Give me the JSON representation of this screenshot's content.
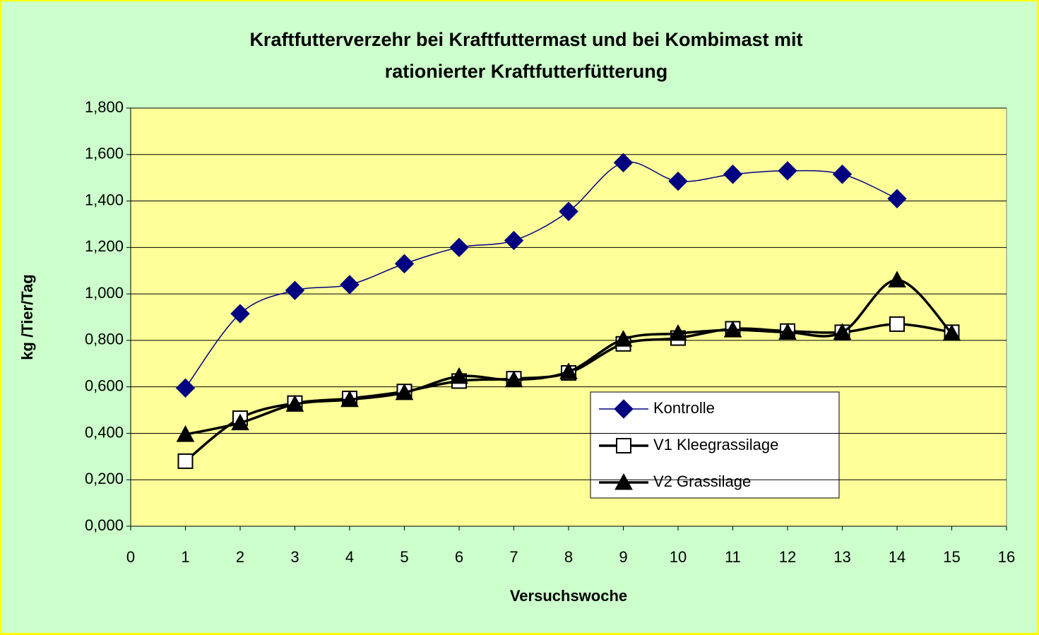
{
  "chart_data": {
    "type": "line",
    "title": [
      "Kraftfutterverzehr bei Kraftfuttermast und bei Kombimast mit",
      "rationierter Kraftfutterfütterung"
    ],
    "x_label": "Versuchswoche",
    "y_label": "kg /Tier/Tag",
    "xlim": [
      0,
      16
    ],
    "xticks": [
      0,
      1,
      2,
      3,
      4,
      5,
      6,
      7,
      8,
      9,
      10,
      11,
      12,
      13,
      14,
      15,
      16
    ],
    "ylim": [
      0,
      1.8
    ],
    "yticks": [
      {
        "value": 0,
        "label": "0,000"
      },
      {
        "value": 0.2,
        "label": "0,200"
      },
      {
        "value": 0.4,
        "label": "0,400"
      },
      {
        "value": 0.6,
        "label": "0,600"
      },
      {
        "value": 0.8,
        "label": "0,800"
      },
      {
        "value": 1.0,
        "label": "1,000"
      },
      {
        "value": 1.2,
        "label": "1,200"
      },
      {
        "value": 1.4,
        "label": "1,400"
      },
      {
        "value": 1.6,
        "label": "1,600"
      },
      {
        "value": 1.8,
        "label": "1,800"
      }
    ],
    "grid": true,
    "series": [
      {
        "name": "Kontrolle",
        "color": "#000080",
        "marker": "diamond",
        "x": [
          1,
          2,
          3,
          4,
          5,
          6,
          7,
          8,
          9,
          10,
          11,
          12,
          13,
          14
        ],
        "values": [
          0.595,
          0.915,
          1.015,
          1.04,
          1.13,
          1.2,
          1.23,
          1.355,
          1.565,
          1.485,
          1.515,
          1.53,
          1.515,
          1.41
        ]
      },
      {
        "name": "V1 Kleegrassilage",
        "color": "#000000",
        "marker": "square",
        "x": [
          1,
          2,
          3,
          4,
          5,
          6,
          7,
          8,
          9,
          10,
          11,
          12,
          13,
          14,
          15
        ],
        "values": [
          0.28,
          0.465,
          0.53,
          0.55,
          0.58,
          0.625,
          0.635,
          0.66,
          0.785,
          0.81,
          0.85,
          0.84,
          0.835,
          0.87,
          0.835
        ]
      },
      {
        "name": "V2 Grassilage",
        "color": "#000000",
        "marker": "triangle",
        "x": [
          1,
          2,
          3,
          4,
          5,
          6,
          7,
          8,
          9,
          10,
          11,
          12,
          13,
          14,
          15
        ],
        "values": [
          0.395,
          0.445,
          0.525,
          0.545,
          0.575,
          0.645,
          0.63,
          0.665,
          0.805,
          0.83,
          0.845,
          0.835,
          0.835,
          1.06,
          0.83
        ]
      }
    ]
  }
}
